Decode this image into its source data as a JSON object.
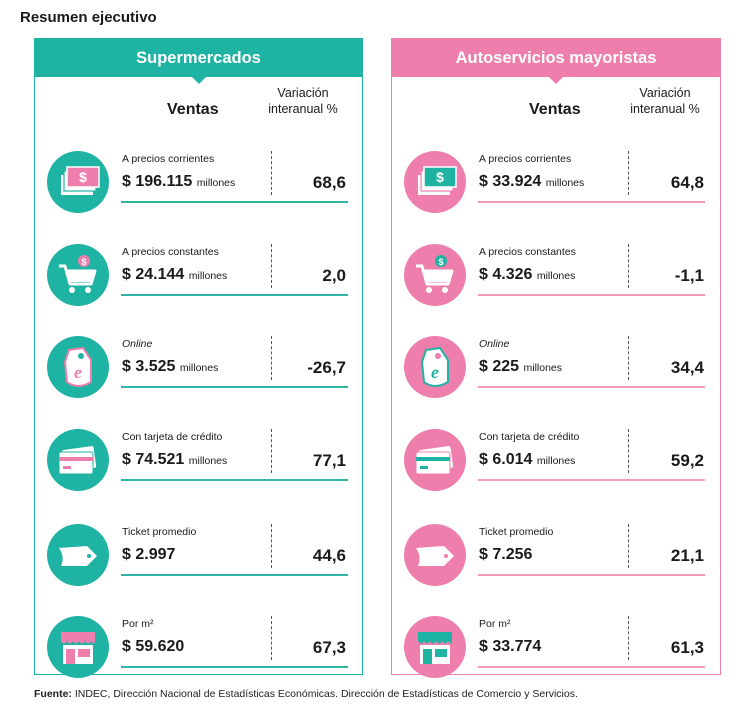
{
  "title": "Resumen ejecutivo",
  "colors": {
    "teal": "#1fb3a3",
    "pink": "#ee7fad",
    "teal_line": "#2fb5a7",
    "pink_line": "#f09ac0"
  },
  "col_headers": {
    "sales": "Ventas",
    "variation": "Variación interanual %"
  },
  "panels": [
    {
      "title": "Supermercados",
      "rows": [
        {
          "label": "A precios corrientes",
          "italic": false,
          "amount": "$ 196.115",
          "unit": "millones",
          "pct": "68,6",
          "icon": "money-icon"
        },
        {
          "label": "A precios constantes",
          "italic": false,
          "amount": "$ 24.144",
          "unit": "millones",
          "pct": "2,0",
          "icon": "cart-icon"
        },
        {
          "label": "Online",
          "italic": true,
          "amount": "$ 3.525",
          "unit": "millones",
          "pct": "-26,7",
          "icon": "online-tag-icon"
        },
        {
          "label": "Con tarjeta de crédito",
          "italic": false,
          "amount": "$ 74.521",
          "unit": "millones",
          "pct": "77,1",
          "icon": "credit-card-icon"
        },
        {
          "label": "Ticket promedio",
          "italic": false,
          "amount": "$ 2.997",
          "unit": "",
          "pct": "44,6",
          "icon": "ticket-icon"
        },
        {
          "label": "Por m²",
          "italic": false,
          "amount": "$ 59.620",
          "unit": "",
          "pct": "67,3",
          "icon": "store-icon"
        }
      ]
    },
    {
      "title": "Autoservicios mayoristas",
      "rows": [
        {
          "label": "A precios corrientes",
          "italic": false,
          "amount": "$ 33.924",
          "unit": "millones",
          "pct": "64,8",
          "icon": "money-icon"
        },
        {
          "label": "A precios constantes",
          "italic": false,
          "amount": "$ 4.326",
          "unit": "millones",
          "pct": "-1,1",
          "icon": "cart-icon"
        },
        {
          "label": "Online",
          "italic": true,
          "amount": "$ 225",
          "unit": "millones",
          "pct": "34,4",
          "icon": "online-tag-icon"
        },
        {
          "label": "Con tarjeta de crédito",
          "italic": false,
          "amount": "$ 6.014",
          "unit": "millones",
          "pct": "59,2",
          "icon": "credit-card-icon"
        },
        {
          "label": "Ticket promedio",
          "italic": false,
          "amount": "$ 7.256",
          "unit": "",
          "pct": "21,1",
          "icon": "ticket-icon"
        },
        {
          "label": "Por m²",
          "italic": false,
          "amount": "$ 33.774",
          "unit": "",
          "pct": "61,3",
          "icon": "store-icon"
        }
      ]
    }
  ],
  "footer": {
    "source_label": "Fuente:",
    "source_text": "INDEC, Dirección Nacional de Estadísticas Económicas. Dirección de Estadísticas de Comercio y Servicios."
  }
}
